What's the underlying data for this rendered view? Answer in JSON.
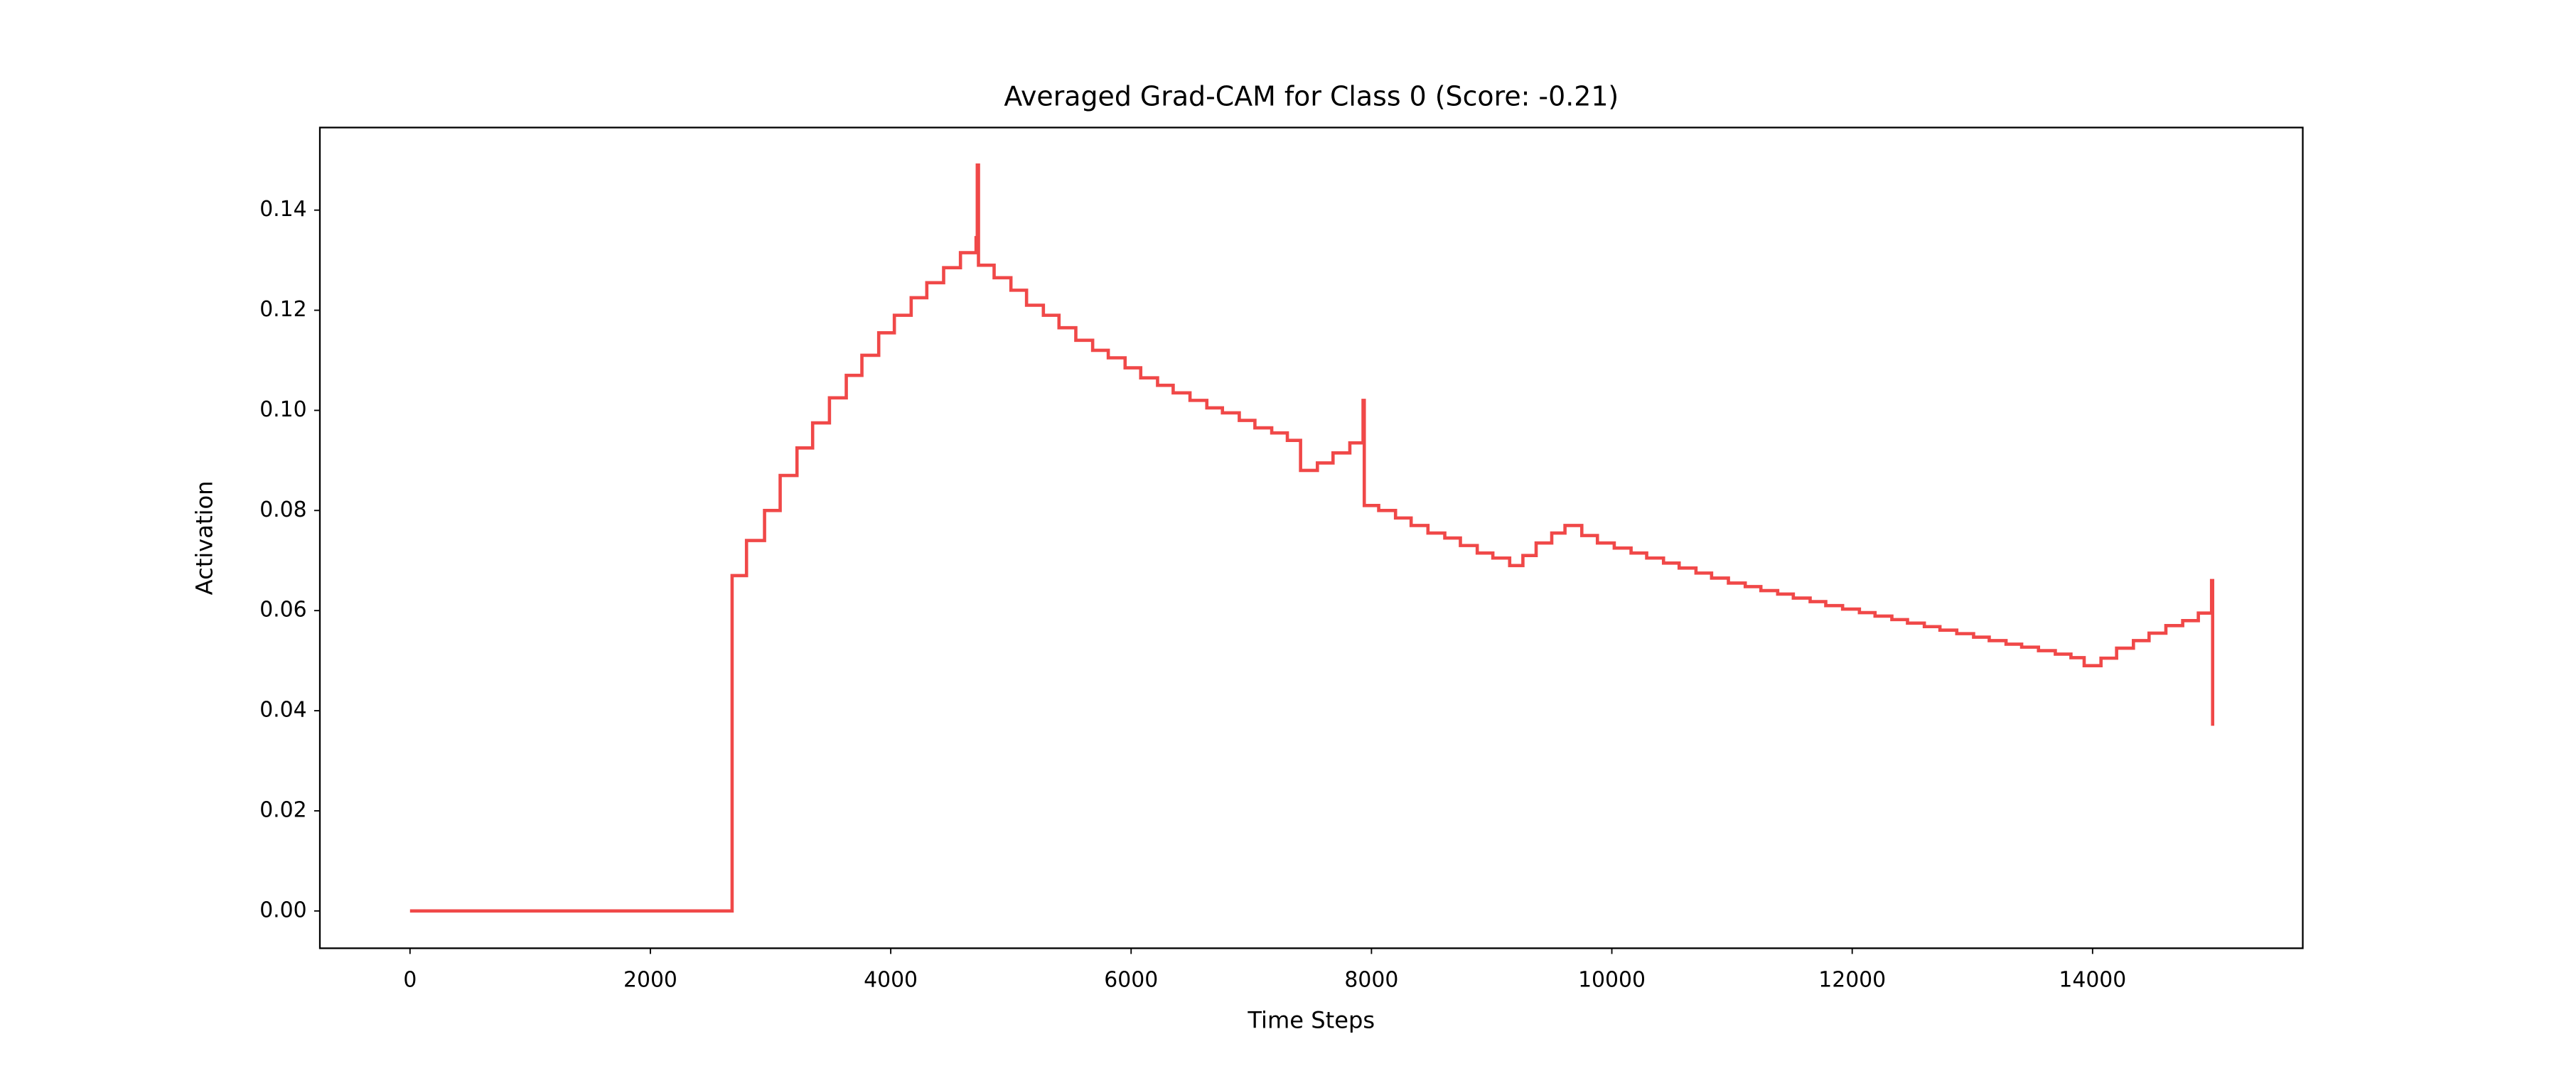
{
  "chart_data": {
    "type": "line",
    "title": "Averaged Grad-CAM for Class 0 (Score: -0.21)",
    "xlabel": "Time Steps",
    "ylabel": "Activation",
    "grid": false,
    "xlim": [
      -750,
      15749
    ],
    "ylim": [
      -0.00745,
      0.1565
    ],
    "xticks": [
      0,
      2000,
      4000,
      6000,
      8000,
      10000,
      12000,
      14000
    ],
    "yticks": [
      {
        "value": 0,
        "label": "0.00"
      },
      {
        "value": 0.02,
        "label": "0.02"
      },
      {
        "value": 0.04,
        "label": "0.04"
      },
      {
        "value": 0.06,
        "label": "0.06"
      },
      {
        "value": 0.08,
        "label": "0.08"
      },
      {
        "value": 0.1,
        "label": "0.10"
      },
      {
        "value": 0.12,
        "label": "0.12"
      },
      {
        "value": 0.14,
        "label": "0.14"
      }
    ],
    "x": [
      0,
      2680,
      2680,
      2800,
      2800,
      2950,
      2950,
      3080,
      3080,
      3220,
      3220,
      3350,
      3350,
      3490,
      3490,
      3630,
      3630,
      3760,
      3760,
      3900,
      3900,
      4030,
      4030,
      4170,
      4170,
      4300,
      4300,
      4440,
      4440,
      4580,
      4580,
      4710,
      4710,
      4720,
      4720,
      4730,
      4730,
      4860,
      4860,
      5000,
      5000,
      5130,
      5130,
      5270,
      5270,
      5400,
      5400,
      5540,
      5540,
      5680,
      5680,
      5810,
      5810,
      5950,
      5950,
      6080,
      6080,
      6220,
      6220,
      6350,
      6350,
      6490,
      6490,
      6630,
      6630,
      6760,
      6760,
      6900,
      6900,
      7030,
      7030,
      7170,
      7170,
      7300,
      7300,
      7410,
      7410,
      7550,
      7550,
      7680,
      7680,
      7820,
      7820,
      7930,
      7930,
      7940,
      7940,
      8060,
      8060,
      8200,
      8200,
      8330,
      8330,
      8470,
      8470,
      8610,
      8610,
      8740,
      8740,
      8880,
      8880,
      9010,
      9010,
      9150,
      9150,
      9260,
      9260,
      9370,
      9370,
      9500,
      9500,
      9610,
      9610,
      9750,
      9750,
      9880,
      9880,
      10020,
      10020,
      10160,
      10160,
      10290,
      10290,
      10430,
      10430,
      10560,
      10560,
      10700,
      10700,
      10830,
      10830,
      10970,
      10970,
      11110,
      11110,
      11240,
      11240,
      11380,
      11380,
      11510,
      11510,
      11650,
      11650,
      11780,
      11780,
      11920,
      11920,
      12060,
      12060,
      12190,
      12190,
      12330,
      12330,
      12460,
      12460,
      12600,
      12600,
      12730,
      12730,
      12870,
      12870,
      13010,
      13010,
      13140,
      13140,
      13280,
      13280,
      13410,
      13410,
      13550,
      13550,
      13690,
      13690,
      13820,
      13820,
      13930,
      13930,
      14070,
      14070,
      14200,
      14200,
      14340,
      14340,
      14470,
      14470,
      14610,
      14610,
      14750,
      14750,
      14880,
      14880,
      14990,
      14990,
      14999,
      14999
    ],
    "series": [
      {
        "color": "#f04848",
        "values": [
          0,
          0,
          0.067,
          0.067,
          0.074,
          0.074,
          0.08,
          0.08,
          0.087,
          0.087,
          0.0925,
          0.0925,
          0.0975,
          0.0975,
          0.1025,
          0.1025,
          0.107,
          0.107,
          0.111,
          0.111,
          0.1155,
          0.1155,
          0.119,
          0.119,
          0.1225,
          0.1225,
          0.1255,
          0.1255,
          0.1285,
          0.1285,
          0.1315,
          0.1315,
          0.1345,
          0.1345,
          0.149,
          0.149,
          0.129,
          0.129,
          0.1265,
          0.1265,
          0.124,
          0.124,
          0.121,
          0.121,
          0.119,
          0.119,
          0.1165,
          0.1165,
          0.114,
          0.114,
          0.112,
          0.112,
          0.1105,
          0.1105,
          0.1085,
          0.1085,
          0.1065,
          0.1065,
          0.105,
          0.105,
          0.1035,
          0.1035,
          0.102,
          0.102,
          0.1005,
          0.1005,
          0.0995,
          0.0995,
          0.098,
          0.098,
          0.0965,
          0.0965,
          0.0955,
          0.0955,
          0.094,
          0.094,
          0.088,
          0.088,
          0.0895,
          0.0895,
          0.0915,
          0.0915,
          0.0935,
          0.0935,
          0.102,
          0.102,
          0.081,
          0.081,
          0.08,
          0.08,
          0.0785,
          0.0785,
          0.077,
          0.077,
          0.0755,
          0.0755,
          0.0745,
          0.0745,
          0.073,
          0.073,
          0.0715,
          0.0715,
          0.0705,
          0.0705,
          0.069,
          0.069,
          0.071,
          0.071,
          0.0735,
          0.0735,
          0.0755,
          0.0755,
          0.077,
          0.077,
          0.075,
          0.075,
          0.0735,
          0.0735,
          0.0725,
          0.0725,
          0.0715,
          0.0715,
          0.0705,
          0.0705,
          0.0695,
          0.0695,
          0.0685,
          0.0685,
          0.0675,
          0.0675,
          0.0665,
          0.0665,
          0.0655,
          0.0655,
          0.0648,
          0.0648,
          0.064,
          0.064,
          0.0633,
          0.0633,
          0.0625,
          0.0625,
          0.0618,
          0.0618,
          0.061,
          0.061,
          0.0603,
          0.0603,
          0.0596,
          0.0596,
          0.0589,
          0.0589,
          0.0582,
          0.0582,
          0.0575,
          0.0575,
          0.0568,
          0.0568,
          0.0561,
          0.0561,
          0.0554,
          0.0554,
          0.0547,
          0.0547,
          0.054,
          0.054,
          0.0533,
          0.0533,
          0.0527,
          0.0527,
          0.052,
          0.052,
          0.0513,
          0.0513,
          0.0506,
          0.0506,
          0.049,
          0.049,
          0.0505,
          0.0505,
          0.0525,
          0.0525,
          0.054,
          0.054,
          0.0555,
          0.0555,
          0.057,
          0.057,
          0.058,
          0.058,
          0.0595,
          0.0595,
          0.066,
          0.066,
          0.037
        ]
      }
    ]
  }
}
